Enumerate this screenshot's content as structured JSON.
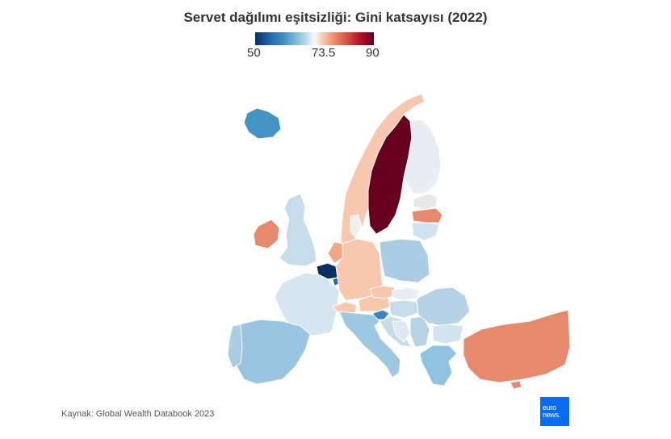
{
  "title": "Servet dağılımı eşitsizliği: Gini katsayısı (2022)",
  "legend": {
    "min_label": "50",
    "mid_label": "73.5",
    "max_label": "90",
    "min": 50,
    "mid": 73.5,
    "max": 90,
    "colors": [
      "#053061",
      "#2166ac",
      "#4393c3",
      "#92c5de",
      "#f7f7f7",
      "#f4a582",
      "#d6604d",
      "#b2182b",
      "#67001f"
    ]
  },
  "source": "Kaynak: Global Wealth Databook 2023",
  "logo": {
    "line1": "euro",
    "line2": "news."
  },
  "chart_data": {
    "type": "choropleth",
    "title": "Servet dağılımı eşitsizliği: Gini katsayısı (2022)",
    "scale_range": [
      50,
      90
    ],
    "regions": [
      {
        "name": "Iceland",
        "color": "#4393c3"
      },
      {
        "name": "Norway",
        "color": "#f7c8ad"
      },
      {
        "name": "Sweden",
        "color": "#67001f"
      },
      {
        "name": "Finland",
        "color": "#e6eef3"
      },
      {
        "name": "Estonia",
        "color": "#e8e8e8"
      },
      {
        "name": "Latvia",
        "color": "#e7896d"
      },
      {
        "name": "Lithuania",
        "color": "#cfe3ee"
      },
      {
        "name": "Denmark",
        "color": "#f0f0f0"
      },
      {
        "name": "United Kingdom",
        "color": "#c6dcea"
      },
      {
        "name": "Ireland",
        "color": "#e7896d"
      },
      {
        "name": "Netherlands",
        "color": "#f0a67f"
      },
      {
        "name": "Belgium",
        "color": "#053061"
      },
      {
        "name": "Luxembourg",
        "color": "#2166ac"
      },
      {
        "name": "Germany",
        "color": "#f7c8ad"
      },
      {
        "name": "Poland",
        "color": "#a9cde3"
      },
      {
        "name": "France",
        "color": "#d6e6f0"
      },
      {
        "name": "Switzerland",
        "color": "#f7c8ad"
      },
      {
        "name": "Austria",
        "color": "#f7c8ad"
      },
      {
        "name": "Czechia",
        "color": "#f7c8ad"
      },
      {
        "name": "Slovakia",
        "color": "#e7eef3"
      },
      {
        "name": "Hungary",
        "color": "#c6dcea"
      },
      {
        "name": "Slovenia",
        "color": "#3a86c0"
      },
      {
        "name": "Croatia",
        "color": "#c6dcea"
      },
      {
        "name": "Bosnia",
        "color": "#dfe9f1"
      },
      {
        "name": "Serbia",
        "color": "#b6d3e6"
      },
      {
        "name": "Romania",
        "color": "#b3d2e6"
      },
      {
        "name": "Bulgaria",
        "color": "#d1e4ef"
      },
      {
        "name": "Greece",
        "color": "#90c3df"
      },
      {
        "name": "Italy",
        "color": "#9cc8e1"
      },
      {
        "name": "Spain",
        "color": "#99c5e0"
      },
      {
        "name": "Portugal",
        "color": "#a9cde3"
      },
      {
        "name": "Cyprus",
        "color": "#e7896d"
      },
      {
        "name": "Turkey",
        "color": "#e7896d"
      }
    ]
  }
}
